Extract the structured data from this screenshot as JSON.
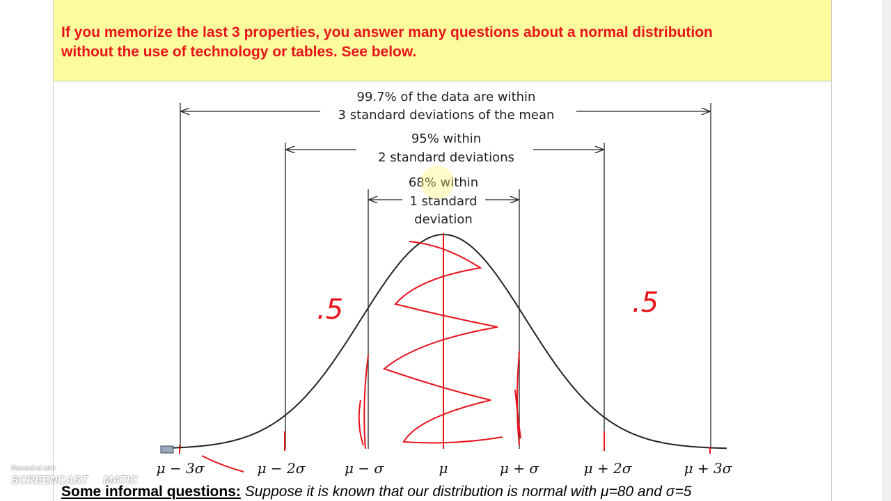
{
  "notice": {
    "text": "If you memorize the last 3 properties, you answer many questions about a normal distribution without the use of technology or tables. See below."
  },
  "diagram": {
    "rule_997": [
      "99.7% of the data are within",
      "3 standard deviations of the mean"
    ],
    "rule_95": [
      "95% within",
      "2 standard deviations"
    ],
    "rule_68": [
      "68% within",
      "1 standard",
      "deviation"
    ],
    "axis_labels": [
      "μ − 3σ",
      "μ − 2σ",
      "μ − σ",
      "μ",
      "μ + σ",
      "μ + 2σ",
      "μ + 3σ"
    ],
    "handwritten": [
      ".5",
      ".5"
    ]
  },
  "questions": {
    "heading": "Some informal questions:",
    "text": "Suppose it is known that our distribution is normal with μ=80 and σ=5"
  },
  "watermark": {
    "small": "Recorded with",
    "left": "SCREENCAST",
    "right": "MATIC"
  }
}
